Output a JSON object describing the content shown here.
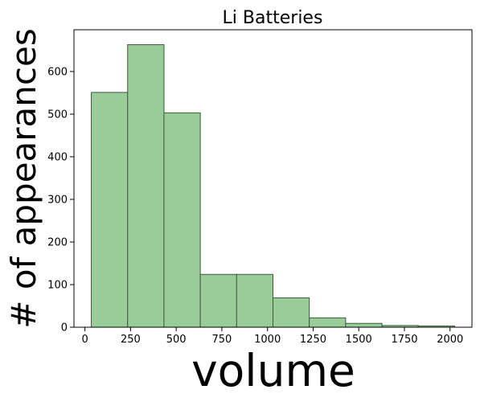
{
  "chart_data": {
    "type": "bar",
    "title": "Li Batteries",
    "xlabel": "volume",
    "ylabel": "# of appearances",
    "bin_edges": [
      35,
      234,
      433,
      632,
      831,
      1030,
      1229,
      1428,
      1627,
      1826,
      2025
    ],
    "values": [
      551,
      663,
      503,
      124,
      124,
      69,
      22,
      9,
      4,
      3
    ],
    "xlim": [
      -60,
      2120
    ],
    "ylim": [
      0,
      698
    ],
    "xticks": [
      0,
      250,
      500,
      750,
      1000,
      1250,
      1500,
      1750,
      2000
    ],
    "yticks": [
      0,
      100,
      200,
      300,
      400,
      500,
      600
    ],
    "bar_color": "#99cc99",
    "edge_color": "#3c5a3c",
    "grid": false
  }
}
